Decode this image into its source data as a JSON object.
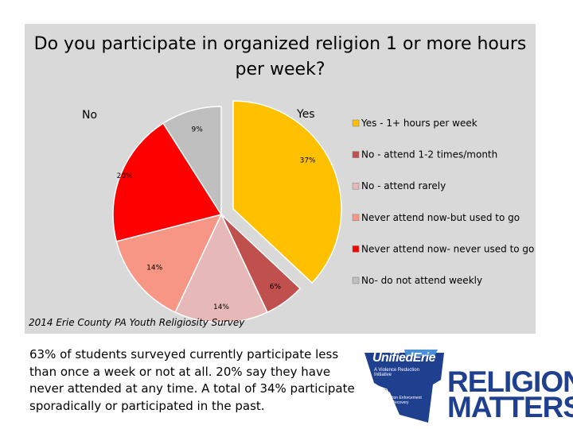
{
  "chart_data": {
    "type": "pie",
    "title": "Do you participate in organized religion 1 or more hours per week?",
    "slices": [
      {
        "name": "Yes - 1+ hours per week",
        "value": 37,
        "label": "37%",
        "color": "#ffc000"
      },
      {
        "name": "No - attend 1-2 times/month",
        "value": 6,
        "label": "6%",
        "color": "#c0504d"
      },
      {
        "name": "No - attend rarely",
        "value": 14,
        "label": "14%",
        "color": "#e6b9b8"
      },
      {
        "name": "Never attend now-but used to go",
        "value": 14,
        "label": "14%",
        "color": "#f79684"
      },
      {
        "name": "Never attend now- never used to go",
        "value": 20,
        "label": "20%",
        "color": "#ff0000"
      },
      {
        "name": "No- do not attend weekly",
        "value": 9,
        "label": "9%",
        "color": "#bfbfbf"
      }
    ],
    "group_labels": {
      "yes": "Yes",
      "no": "No"
    },
    "legend_position": "right",
    "source": "2014 Erie County PA Youth Religiosity Survey"
  },
  "summary": "63% of students surveyed currently participate less than once a week or not at all. 20% say they have never attended at any time.  A total of 34% participate sporadically or participated in the past.",
  "logo": {
    "unified": "UnifiedErie",
    "tagline": "A Violence Reduction Initiative",
    "badge": "Prevention Enforcement Recovery",
    "religion": "RELIGION",
    "matters": "MATTERS."
  }
}
